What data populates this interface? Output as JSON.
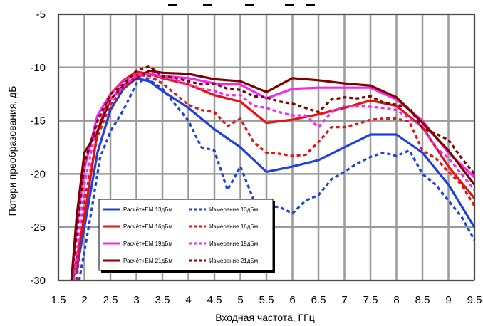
{
  "chart_data": {
    "type": "line",
    "xlabel": "Входная частота, ГГц",
    "ylabel": "Потери преобразования, дБ",
    "xlim": [
      1.5,
      9.5
    ],
    "ylim": [
      -30,
      -5
    ],
    "x_ticks": [
      "1.5",
      "2",
      "2.5",
      "3",
      "3.5",
      "4",
      "4.5",
      "5",
      "5.5",
      "6",
      "6.5",
      "7",
      "7.5",
      "8",
      "8.5",
      "9",
      "9.5"
    ],
    "y_ticks": [
      "-5",
      "-10",
      "-15",
      "-20",
      "-25",
      "-30"
    ],
    "grid": true,
    "legend_position": "bottom-left",
    "series": [
      {
        "name": "Расчёт+EM 13дБм",
        "color": "#1f3fe0",
        "style": "solid",
        "x": [
          1.75,
          1.85,
          2.0,
          2.25,
          2.5,
          2.75,
          3.0,
          3.25,
          3.5,
          3.75,
          4.0,
          4.5,
          5.0,
          5.5,
          6.0,
          6.5,
          7.0,
          7.5,
          8.0,
          8.5,
          9.0,
          9.5
        ],
        "y": [
          -30,
          -29,
          -25,
          -18,
          -14,
          -12,
          -11,
          -11.3,
          -12.2,
          -13,
          -13.8,
          -15.8,
          -17.5,
          -19.8,
          -19.3,
          -18.7,
          -17.5,
          -16.3,
          -16.3,
          -18,
          -21,
          -25
        ]
      },
      {
        "name": "Расчёт+EM 16дБм",
        "color": "#e81010",
        "style": "solid",
        "x": [
          1.75,
          1.85,
          2.0,
          2.25,
          2.5,
          2.75,
          3.0,
          3.25,
          3.5,
          4.0,
          4.5,
          5.0,
          5.5,
          6.0,
          6.5,
          7.0,
          7.5,
          8.0,
          8.5,
          9.0,
          9.5
        ],
        "y": [
          -30,
          -28,
          -24,
          -16,
          -12.5,
          -11.2,
          -10.4,
          -10.6,
          -11,
          -11.6,
          -12.6,
          -13.2,
          -15.2,
          -14.9,
          -14.4,
          -13.8,
          -13.1,
          -13.6,
          -15.6,
          -19.3,
          -22.3
        ]
      },
      {
        "name": "Расчёт+EM 19дБм",
        "color": "#f028f0",
        "style": "solid",
        "x": [
          1.75,
          1.85,
          2.0,
          2.25,
          2.5,
          2.75,
          3.0,
          3.25,
          3.5,
          4.0,
          4.5,
          5.0,
          5.5,
          6.0,
          6.5,
          7.0,
          7.5,
          8.0,
          8.5,
          9.0,
          9.5
        ],
        "y": [
          -30,
          -25,
          -19.5,
          -14.5,
          -12.5,
          -11.3,
          -10.6,
          -10.6,
          -10.8,
          -11,
          -11.5,
          -11.6,
          -12.9,
          -12,
          -11.9,
          -11.9,
          -11.9,
          -13,
          -15,
          -18,
          -20.3
        ]
      },
      {
        "name": "Расчёт+EM 21дБм",
        "color": "#800000",
        "style": "solid",
        "x": [
          1.75,
          1.85,
          2.0,
          2.25,
          2.5,
          2.75,
          3.0,
          3.25,
          3.5,
          4.0,
          4.5,
          5.0,
          5.5,
          6.0,
          6.5,
          7.0,
          7.5,
          8.0,
          8.5,
          9.0,
          9.5
        ],
        "y": [
          -30,
          -24,
          -18,
          -16,
          -13,
          -11.7,
          -11,
          -10.3,
          -10.5,
          -10.6,
          -11.1,
          -11.3,
          -12.3,
          -11,
          -11.2,
          -11.5,
          -11.7,
          -12.8,
          -15.2,
          -17.8,
          -21
        ]
      },
      {
        "name": "Измерение 13дБм",
        "color": "#1f3fe0",
        "style": "dashed",
        "x": [
          1.9,
          2.1,
          2.3,
          2.5,
          2.75,
          3.0,
          3.2,
          3.5,
          3.75,
          4.0,
          4.25,
          4.5,
          4.75,
          5.0,
          5.25,
          5.5,
          5.75,
          6.0,
          6.25,
          6.5,
          6.75,
          7.0,
          7.25,
          7.5,
          7.75,
          8.0,
          8.25,
          8.5,
          8.75,
          9.0,
          9.25,
          9.5
        ],
        "y": [
          -30,
          -24.5,
          -18.5,
          -16,
          -14,
          -11.5,
          -11,
          -12,
          -13.5,
          -15,
          -17.5,
          -17.8,
          -21.5,
          -19.3,
          -22.4,
          -23,
          -23.1,
          -23.7,
          -22.5,
          -22,
          -20.5,
          -19.8,
          -19,
          -18.4,
          -18,
          -18.3,
          -17.8,
          -20,
          -21,
          -22.5,
          -24,
          -26.2
        ]
      },
      {
        "name": "Измерение 16дБм",
        "color": "#e81010",
        "style": "dashed",
        "x": [
          1.85,
          2.0,
          2.25,
          2.5,
          2.75,
          3.0,
          3.25,
          3.5,
          3.75,
          4.0,
          4.25,
          4.5,
          4.75,
          5.0,
          5.25,
          5.5,
          5.75,
          6.0,
          6.25,
          6.5,
          6.75,
          7.0,
          7.25,
          7.5,
          7.75,
          8.0,
          8.25,
          8.5,
          8.75,
          9.0,
          9.25,
          9.5
        ],
        "y": [
          -30,
          -22.5,
          -16.5,
          -13.5,
          -12,
          -10.7,
          -10.8,
          -11.5,
          -12.5,
          -13.5,
          -14,
          -14.2,
          -15.5,
          -14.8,
          -17,
          -18,
          -18.1,
          -18.3,
          -18.2,
          -17,
          -15.6,
          -15.6,
          -15.3,
          -14.9,
          -14.8,
          -14.8,
          -15.1,
          -17.8,
          -18.5,
          -19.8,
          -21,
          -23
        ]
      },
      {
        "name": "Измерение 19дБм",
        "color": "#f028f0",
        "style": "dashed",
        "x": [
          1.8,
          2.0,
          2.25,
          2.5,
          2.75,
          3.0,
          3.25,
          3.5,
          3.75,
          4.0,
          4.25,
          4.5,
          4.75,
          5.0,
          5.25,
          5.5,
          5.75,
          6.0,
          6.25,
          6.5,
          6.75,
          7.0,
          7.25,
          7.5,
          7.75,
          8.0,
          8.25,
          8.5,
          8.75,
          9.0,
          9.25,
          9.5
        ],
        "y": [
          -30,
          -21,
          -15,
          -13,
          -11.8,
          -10.8,
          -10.6,
          -10.9,
          -11.2,
          -11.6,
          -12,
          -12.2,
          -12.6,
          -12.6,
          -13.6,
          -13.8,
          -14.2,
          -14.5,
          -14.5,
          -15.6,
          -14.2,
          -13.6,
          -13.6,
          -13.7,
          -13.8,
          -14,
          -14.8,
          -15.5,
          -17.5,
          -18.5,
          -20,
          -21.5
        ]
      },
      {
        "name": "Измерение 21дБм",
        "color": "#800000",
        "style": "dashed",
        "x": [
          1.75,
          2.0,
          2.25,
          2.5,
          2.75,
          3.0,
          3.25,
          3.5,
          3.75,
          4.0,
          4.25,
          4.5,
          4.75,
          5.0,
          5.25,
          5.5,
          5.75,
          6.0,
          6.25,
          6.5,
          6.75,
          7.0,
          7.25,
          7.5,
          7.75,
          8.0,
          8.25,
          8.5,
          8.75,
          9.0,
          9.25,
          9.5
        ],
        "y": [
          -30,
          -19,
          -15,
          -12.5,
          -11.6,
          -10.3,
          -9.9,
          -10.8,
          -11,
          -11.3,
          -11.6,
          -11.5,
          -12,
          -12.1,
          -12.7,
          -12.8,
          -13.2,
          -13.4,
          -13.8,
          -14.2,
          -13,
          -12.8,
          -12.9,
          -12.7,
          -13.3,
          -13.5,
          -13.8,
          -15.7,
          -16.2,
          -16.8,
          -18.5,
          -20
        ]
      }
    ]
  }
}
